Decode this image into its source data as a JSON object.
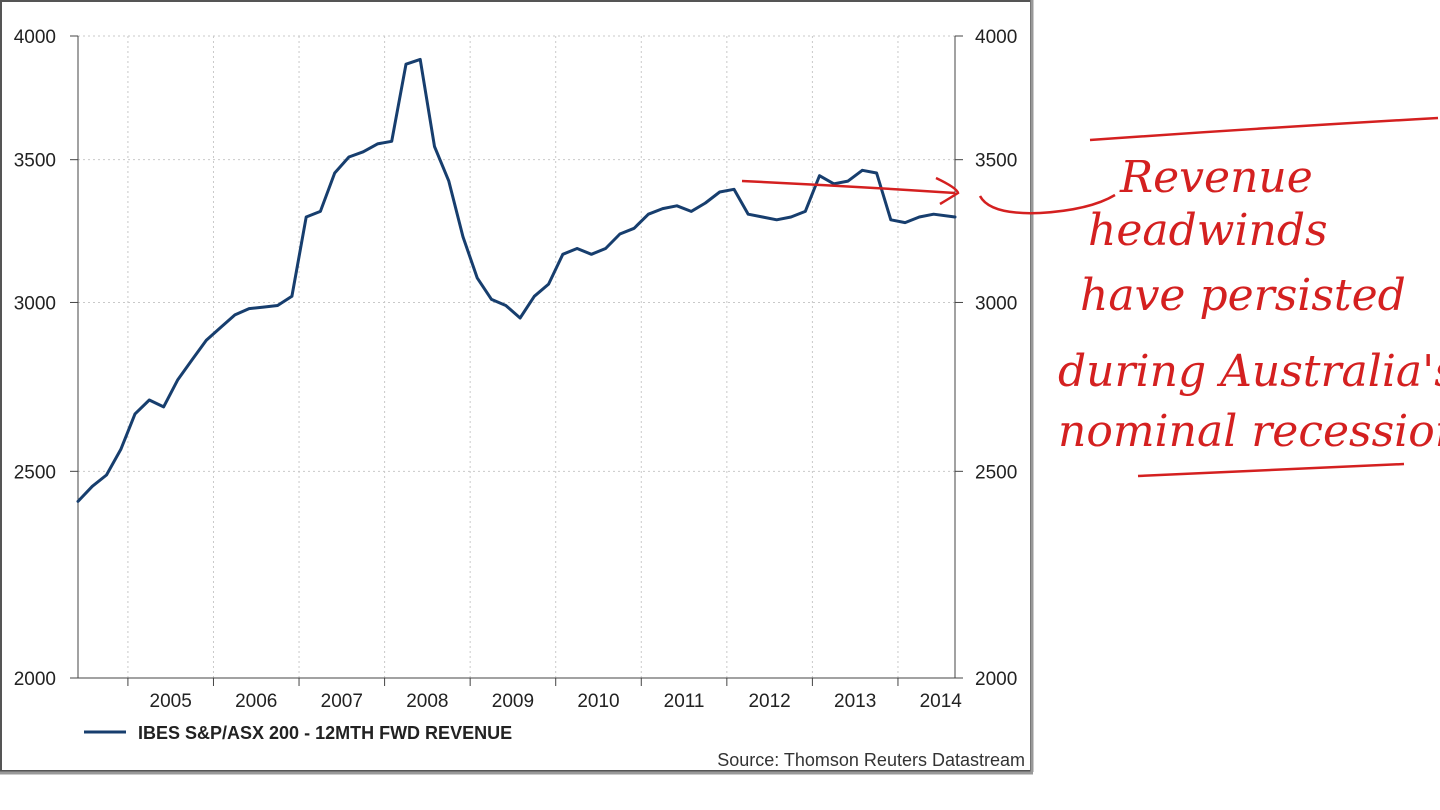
{
  "chart_data": {
    "type": "line",
    "title": "",
    "xlabel": "",
    "ylabel": "",
    "y_scale": "log",
    "ylim": [
      2000,
      4000
    ],
    "xlim": [
      "2004-06",
      "2014-09"
    ],
    "y_ticks": [
      {
        "value": 2000,
        "label": "2000"
      },
      {
        "value": 2500,
        "label": "2500"
      },
      {
        "value": 3000,
        "label": "3000"
      },
      {
        "value": 3500,
        "label": "3500"
      },
      {
        "value": 4000,
        "label": "4000"
      }
    ],
    "x_ticks": [
      "2005",
      "2006",
      "2007",
      "2008",
      "2009",
      "2010",
      "2011",
      "2012",
      "2013",
      "2014"
    ],
    "grid": true,
    "legend_position": "bottom-left",
    "series": [
      {
        "name": "IBES S&P/ASX 200 - 12MTH FWD REVENUE",
        "color": "#173e6e",
        "x": [
          "2004-06",
          "2004-08",
          "2004-10",
          "2004-12",
          "2005-02",
          "2005-04",
          "2005-06",
          "2005-08",
          "2005-10",
          "2005-12",
          "2006-02",
          "2006-04",
          "2006-06",
          "2006-08",
          "2006-10",
          "2006-12",
          "2007-02",
          "2007-04",
          "2007-06",
          "2007-08",
          "2007-10",
          "2007-12",
          "2008-02",
          "2008-04",
          "2008-06",
          "2008-08",
          "2008-10",
          "2008-12",
          "2009-02",
          "2009-04",
          "2009-06",
          "2009-08",
          "2009-10",
          "2009-12",
          "2010-02",
          "2010-04",
          "2010-06",
          "2010-08",
          "2010-10",
          "2010-12",
          "2011-02",
          "2011-04",
          "2011-06",
          "2011-08",
          "2011-10",
          "2011-12",
          "2012-02",
          "2012-04",
          "2012-06",
          "2012-08",
          "2012-10",
          "2012-12",
          "2013-02",
          "2013-04",
          "2013-06",
          "2013-08",
          "2013-10",
          "2013-12",
          "2014-02",
          "2014-04",
          "2014-06",
          "2014-09"
        ],
        "values": [
          2420,
          2460,
          2490,
          2560,
          2660,
          2700,
          2680,
          2760,
          2820,
          2880,
          2920,
          2960,
          2980,
          2985,
          2990,
          3020,
          3290,
          3310,
          3450,
          3510,
          3530,
          3560,
          3570,
          3880,
          3900,
          3550,
          3420,
          3220,
          3080,
          3010,
          2990,
          2950,
          3020,
          3060,
          3160,
          3180,
          3160,
          3180,
          3230,
          3250,
          3300,
          3320,
          3330,
          3310,
          3340,
          3380,
          3390,
          3300,
          3290,
          3280,
          3290,
          3310,
          3440,
          3410,
          3420,
          3460,
          3450,
          3280,
          3270,
          3290,
          3300,
          3290
        ]
      }
    ]
  },
  "legend": {
    "label": "IBES S&P/ASX 200 - 12MTH FWD REVENUE"
  },
  "source": {
    "text": "Source: Thomson Reuters Datastream"
  },
  "annotation": {
    "lines": [
      "Revenue",
      "headwinds",
      "have persisted",
      "during Australia's",
      "nominal recession"
    ],
    "color": "#d42020"
  }
}
